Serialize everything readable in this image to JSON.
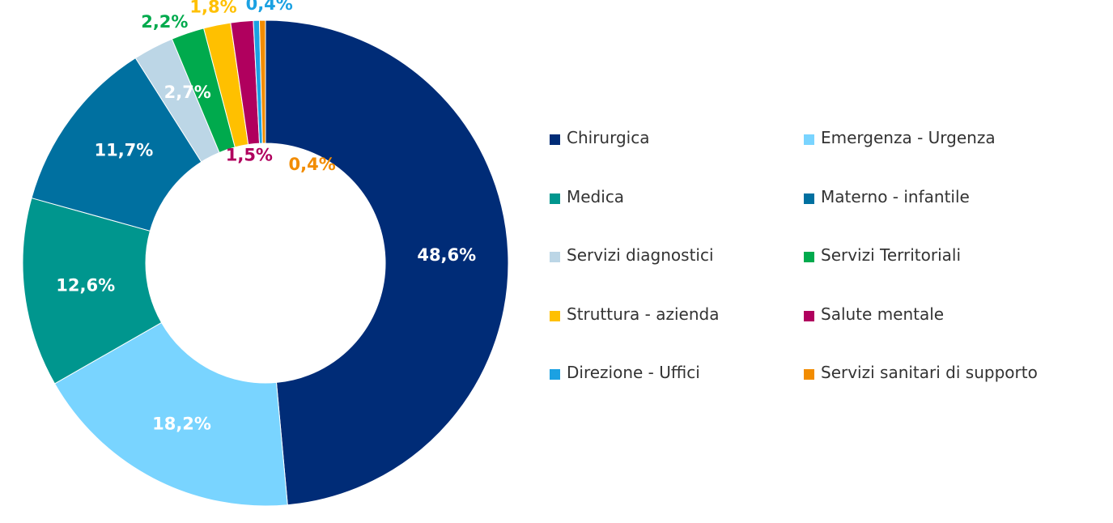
{
  "chart_data": {
    "type": "pie",
    "donut": true,
    "legend_position": "right",
    "categories": [
      "Chirurgica",
      "Emergenza - Urgenza",
      "Medica",
      "Materno - infantile",
      "Servizi diagnostici",
      "Servizi Territoriali",
      "Struttura - azienda",
      "Salute mentale",
      "Direzione - Uffici",
      "Servizi sanitari di supporto"
    ],
    "values": [
      48.6,
      18.2,
      12.6,
      11.7,
      2.7,
      2.2,
      1.8,
      1.5,
      0.4,
      0.4
    ],
    "labels": [
      "48,6%",
      "18,2%",
      "12,6%",
      "11,7%",
      "2,7%",
      "2,2%",
      "1,8%",
      "1,5%",
      "0,4%",
      "0,4%"
    ],
    "colors": [
      "#002C77",
      "#79D4FF",
      "#00968E",
      "#0070A0",
      "#BCD6E6",
      "#00AA4D",
      "#FFC000",
      "#B0005E",
      "#1BA1E2",
      "#F28C00"
    ],
    "label_colors": [
      "#FFFFFF",
      "#FFFFFF",
      "#FFFFFF",
      "#FFFFFF",
      "#FFFFFF",
      "#00AA4D",
      "#FFC000",
      "#B0005E",
      "#1BA1E2",
      "#F28C00"
    ]
  }
}
